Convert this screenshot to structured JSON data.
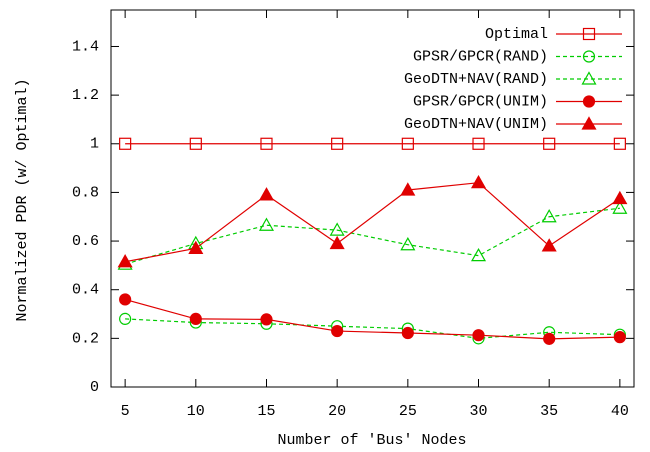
{
  "chart_data": {
    "type": "line",
    "x_label": "Number of 'Bus' Nodes",
    "y_label": "Normalized PDR (w/ Optimal)",
    "x": [
      5,
      10,
      15,
      20,
      25,
      30,
      35,
      40
    ],
    "xlim": [
      4,
      41
    ],
    "xticks": [
      5,
      10,
      15,
      20,
      25,
      30,
      35,
      40
    ],
    "ylim": [
      0,
      1.55
    ],
    "yticks": [
      0,
      0.2,
      0.4,
      0.6,
      0.8,
      1,
      1.2,
      1.4
    ],
    "legend": "top-right",
    "series": [
      {
        "name": "Optimal",
        "color": "#e00000",
        "marker": "square-open",
        "dash": false,
        "values": [
          1,
          1,
          1,
          1,
          1,
          1,
          1,
          1
        ]
      },
      {
        "name": "GPSR/GPCR(RAND)",
        "color": "#00cc00",
        "marker": "circle-open",
        "dash": true,
        "values": [
          0.28,
          0.265,
          0.26,
          0.25,
          0.24,
          0.2,
          0.225,
          0.215
        ]
      },
      {
        "name": "GeoDTN+NAV(RAND)",
        "color": "#00cc00",
        "marker": "triangle-open",
        "dash": true,
        "values": [
          0.505,
          0.59,
          0.665,
          0.645,
          0.585,
          0.54,
          0.7,
          0.735
        ]
      },
      {
        "name": "GPSR/GPCR(UNIM)",
        "color": "#e00000",
        "marker": "circle-filled",
        "dash": false,
        "values": [
          0.36,
          0.28,
          0.278,
          0.23,
          0.222,
          0.213,
          0.198,
          0.205
        ]
      },
      {
        "name": "GeoDTN+NAV(UNIM)",
        "color": "#e00000",
        "marker": "triangle-filled",
        "dash": false,
        "values": [
          0.515,
          0.57,
          0.79,
          0.59,
          0.81,
          0.84,
          0.58,
          0.775
        ]
      }
    ]
  }
}
